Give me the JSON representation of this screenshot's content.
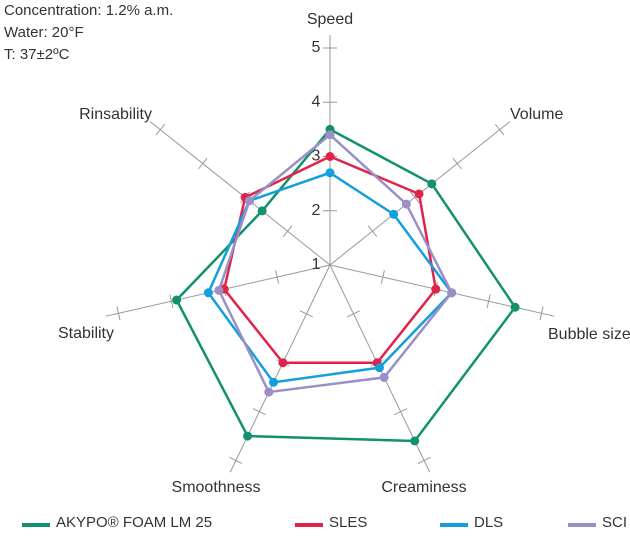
{
  "chart_data": {
    "type": "radar",
    "annotations": [
      "Concentration: 1.2% a.m.",
      "Water: 20°F",
      "T: 37±2ºC"
    ],
    "categories": [
      "Speed",
      "Volume",
      "Bubble size",
      "Creaminess",
      "Smoothness",
      "Stability",
      "Rinsability"
    ],
    "rlim": [
      1,
      5
    ],
    "rticks": [
      1,
      2,
      3,
      4,
      5
    ],
    "series": [
      {
        "name": "AKYPO® FOAM LM 25",
        "color": "#12916f",
        "values": [
          3.5,
          3.4,
          4.5,
          4.6,
          4.5,
          3.9,
          2.6
        ]
      },
      {
        "name": "SLES",
        "color": "#e0234a",
        "values": [
          3.0,
          3.1,
          3.0,
          3.0,
          3.0,
          3.0,
          3.0
        ]
      },
      {
        "name": "DLS",
        "color": "#139fdc",
        "values": [
          2.7,
          2.5,
          3.3,
          3.1,
          3.4,
          3.3,
          2.9
        ]
      },
      {
        "name": "SCI",
        "color": "#9b8fc6",
        "values": [
          3.4,
          2.8,
          3.3,
          3.3,
          3.6,
          3.1,
          2.9
        ]
      }
    ]
  }
}
